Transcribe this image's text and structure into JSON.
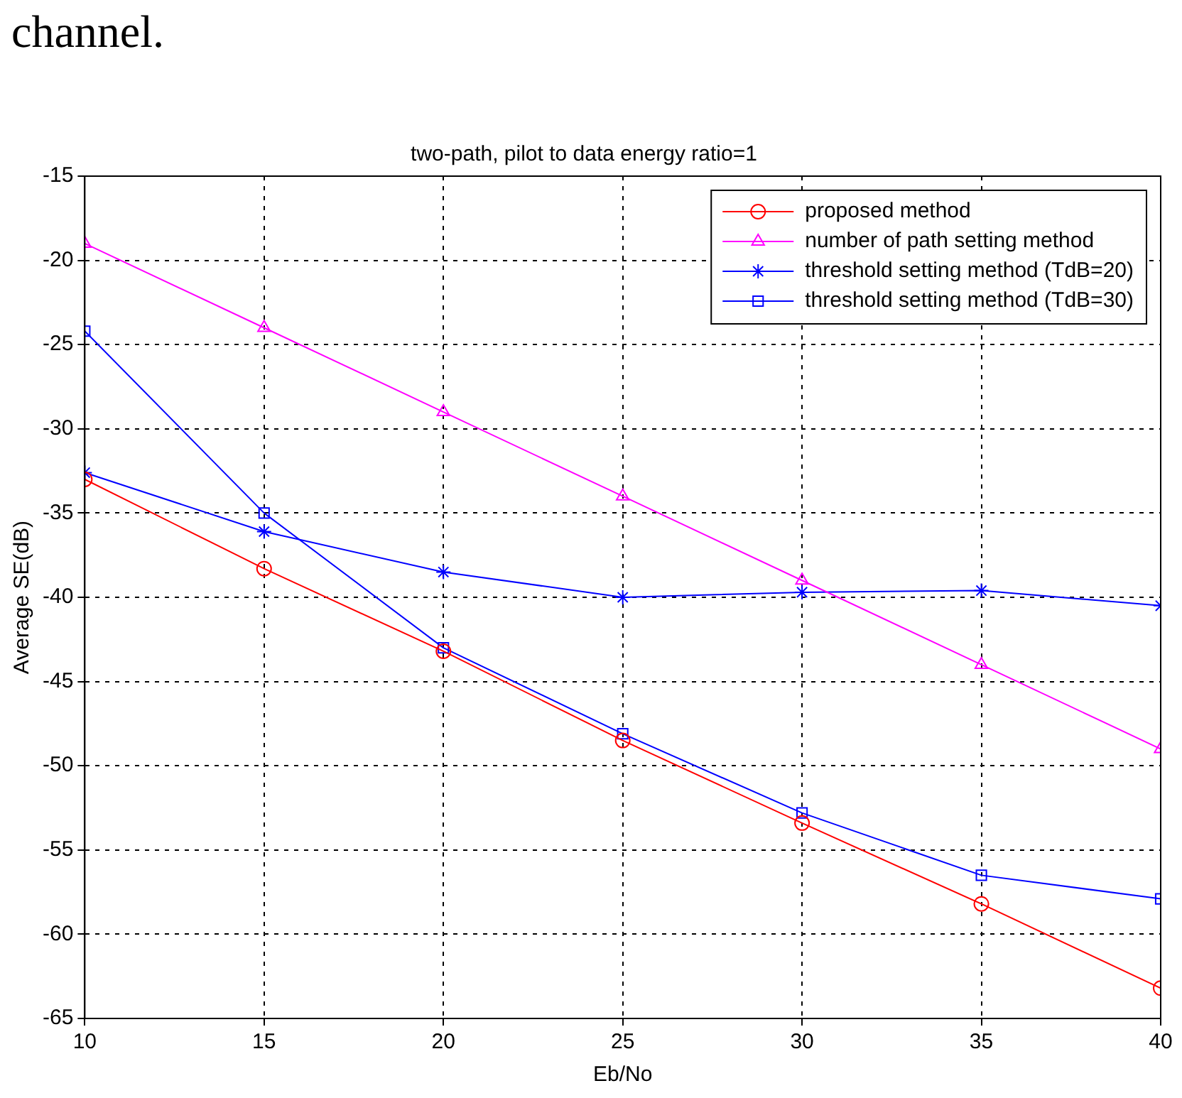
{
  "chart_data": {
    "type": "line",
    "title": "two-path, pilot to data energy ratio=1",
    "xlabel": "Eb/No",
    "ylabel": "Average SE(dB)",
    "annotations": [
      "channel."
    ],
    "x": [
      10,
      15,
      20,
      25,
      30,
      35,
      40
    ],
    "series": [
      {
        "name": "proposed method",
        "color": "#ff0000",
        "marker": "circle",
        "values": [
          -33,
          -38.3,
          -43.2,
          -48.5,
          -53.4,
          -58.2,
          -63.2
        ]
      },
      {
        "name": "number of path setting method",
        "color": "#ff00ff",
        "marker": "triangle",
        "values": [
          -19,
          -24,
          -29,
          -34,
          -39,
          -44,
          -49
        ]
      },
      {
        "name": "threshold setting method (TdB=20)",
        "color": "#0000ff",
        "marker": "cross",
        "values": [
          -32.6,
          -36.1,
          -38.5,
          -40,
          -39.7,
          -39.6,
          -40.5
        ]
      },
      {
        "name": "threshold setting method (TdB=30)",
        "color": "#0000ff",
        "marker": "square",
        "values": [
          -24.2,
          -35,
          -43,
          -48.1,
          -52.8,
          -56.5,
          -57.9
        ]
      }
    ],
    "xlim": [
      10,
      40
    ],
    "xticks": [
      10,
      15,
      20,
      25,
      30,
      35,
      40
    ],
    "ylim": [
      -65,
      -15
    ],
    "yticks": [
      -65,
      -60,
      -55,
      -50,
      -45,
      -40,
      -35,
      -30,
      -25,
      -20,
      -15
    ],
    "grid": true,
    "line_style": "solid",
    "legend": "top right"
  }
}
